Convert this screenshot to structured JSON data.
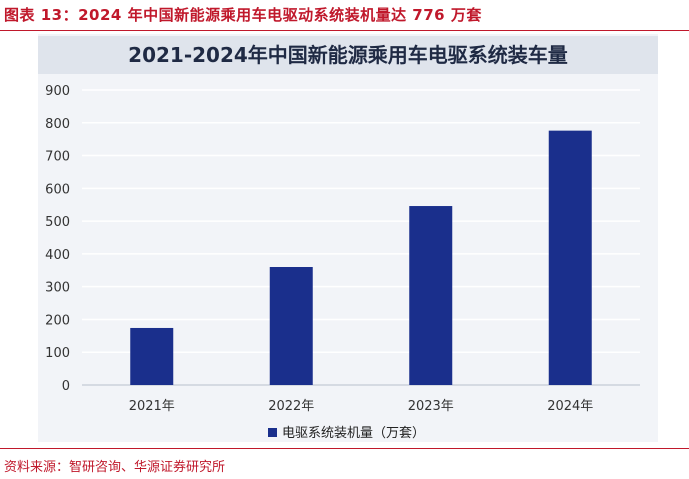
{
  "figure": {
    "caption": "图表 13：2024 年中国新能源乘用车电驱动系统装机量达 776 万套",
    "source": "资料来源：智研咨询、华源证券研究所"
  },
  "colors": {
    "bar": "#1a2f8c",
    "caption": "#c0182b",
    "grid": "#ffffff"
  },
  "chart_data": {
    "type": "bar",
    "title": "2021-2024年中国新能源乘用车电驱系统装车量",
    "categories": [
      "2021年",
      "2022年",
      "2023年",
      "2024年"
    ],
    "series": [
      {
        "name": "电驱系统装机量（万套）",
        "values": [
          174,
          360,
          546,
          776
        ]
      }
    ],
    "ylim": [
      0,
      900
    ],
    "yticks": [
      0,
      100,
      200,
      300,
      400,
      500,
      600,
      700,
      800,
      900
    ],
    "xlabel": "",
    "ylabel": "",
    "grid": true,
    "legend": "bottom-center"
  }
}
